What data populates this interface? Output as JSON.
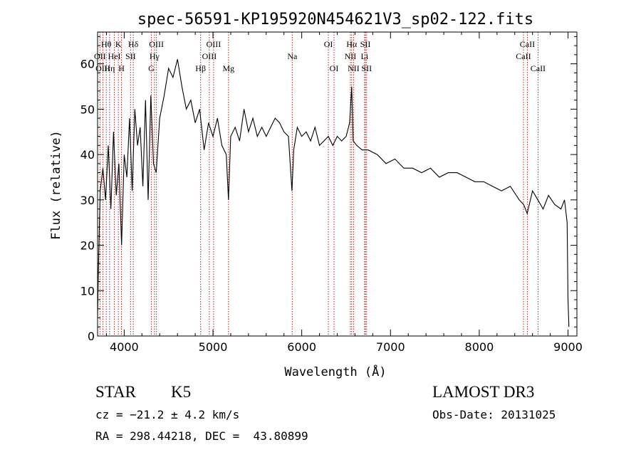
{
  "chart_data": {
    "type": "line",
    "title": "spec-56591-KP195920N454621V3_sp02-122.fits",
    "xlabel": "Wavelength (Å)",
    "ylabel": "Flux (relative)",
    "xlim": [
      3700,
      9100
    ],
    "ylim": [
      0,
      67
    ],
    "x_ticks": [
      4000,
      5000,
      6000,
      7000,
      8000,
      9000
    ],
    "y_ticks": [
      0,
      10,
      20,
      30,
      40,
      50,
      60
    ],
    "x_tick_labels": [
      "4000",
      "5000",
      "6000",
      "7000",
      "8000",
      "9000"
    ],
    "y_tick_labels": [
      "0",
      "10",
      "20",
      "30",
      "40",
      "50",
      "60"
    ],
    "series": [
      {
        "name": "flux",
        "color": "#000000",
        "x": [
          3700,
          3710,
          3730,
          3760,
          3790,
          3820,
          3850,
          3880,
          3910,
          3940,
          3970,
          4000,
          4030,
          4060,
          4090,
          4120,
          4150,
          4180,
          4210,
          4240,
          4270,
          4300,
          4330,
          4360,
          4400,
          4450,
          4500,
          4550,
          4600,
          4650,
          4700,
          4750,
          4800,
          4850,
          4900,
          4950,
          5000,
          5050,
          5100,
          5150,
          5175,
          5200,
          5250,
          5300,
          5350,
          5400,
          5450,
          5500,
          5550,
          5600,
          5650,
          5700,
          5750,
          5800,
          5850,
          5890,
          5910,
          5950,
          6000,
          6050,
          6100,
          6150,
          6200,
          6250,
          6300,
          6350,
          6400,
          6450,
          6500,
          6540,
          6563,
          6580,
          6620,
          6680,
          6750,
          6850,
          6950,
          7050,
          7150,
          7250,
          7350,
          7450,
          7550,
          7650,
          7750,
          7850,
          7950,
          8050,
          8150,
          8250,
          8350,
          8450,
          8500,
          8540,
          8600,
          8660,
          8720,
          8780,
          8850,
          8920,
          8960,
          8990,
          9000,
          9010
        ],
        "values": [
          4,
          15,
          32,
          37,
          30,
          42,
          28,
          45,
          31,
          38,
          20,
          40,
          35,
          48,
          32,
          50,
          42,
          46,
          33,
          52,
          30,
          53,
          38,
          36,
          48,
          53,
          59,
          57,
          61,
          55,
          50,
          52,
          47,
          50,
          41,
          47,
          44,
          48,
          42,
          40,
          30,
          44,
          46,
          43,
          50,
          45,
          48,
          44,
          46,
          44,
          46,
          48,
          47,
          45,
          44,
          32,
          41,
          46,
          44,
          45,
          43,
          46,
          42,
          43,
          44,
          42,
          44,
          43,
          44,
          47,
          55,
          43,
          42,
          41,
          41,
          40,
          38,
          39,
          37,
          37,
          36,
          37,
          35,
          36,
          36,
          35,
          34,
          34,
          33,
          32,
          33,
          30,
          29,
          27,
          32,
          30,
          28,
          31,
          29,
          28,
          30,
          25,
          8,
          2
        ]
      }
    ],
    "spectral_lines": [
      {
        "label": "Hθ",
        "x": 3798,
        "row": 0
      },
      {
        "label": "OII",
        "x": 3727,
        "row": 1
      },
      {
        "label": "OIII",
        "x": 3760,
        "row": 2
      },
      {
        "label": "K",
        "x": 3934,
        "row": 0
      },
      {
        "label": "HeI",
        "x": 3889,
        "row": 1
      },
      {
        "label": "Hη",
        "x": 3835,
        "row": 2
      },
      {
        "label": "H",
        "x": 3969,
        "row": 2
      },
      {
        "label": "Hδ",
        "x": 4102,
        "row": 0
      },
      {
        "label": "SII",
        "x": 4072,
        "row": 1
      },
      {
        "label": "OIII",
        "x": 4363,
        "row": 0
      },
      {
        "label": "Hγ",
        "x": 4341,
        "row": 1
      },
      {
        "label": "G",
        "x": 4305,
        "row": 2
      },
      {
        "label": "Hβ",
        "x": 4861,
        "row": 2
      },
      {
        "label": "OIII",
        "x": 5007,
        "row": 0
      },
      {
        "label": "OIII",
        "x": 4959,
        "row": 1
      },
      {
        "label": "Mg",
        "x": 5175,
        "row": 2
      },
      {
        "label": "Na",
        "x": 5893,
        "row": 1
      },
      {
        "label": "OI",
        "x": 6300,
        "row": 0
      },
      {
        "label": "OI",
        "x": 6364,
        "row": 2
      },
      {
        "label": "Hα",
        "x": 6563,
        "row": 0
      },
      {
        "label": "NII",
        "x": 6548,
        "row": 1
      },
      {
        "label": "NII",
        "x": 6584,
        "row": 2
      },
      {
        "label": "SII",
        "x": 6717,
        "row": 0
      },
      {
        "label": "Li",
        "x": 6708,
        "row": 1
      },
      {
        "label": "SII",
        "x": 6731,
        "row": 2
      },
      {
        "label": "CaII",
        "x": 8542,
        "row": 0
      },
      {
        "label": "CaII",
        "x": 8498,
        "row": 1
      },
      {
        "label": "CaII",
        "x": 8662,
        "row": 2
      }
    ]
  },
  "info": {
    "object_class": "STAR",
    "subclass": "K5",
    "survey": "LAMOST DR3",
    "cz": "cz = −21.2 ± 4.2 km/s",
    "obs_date": "Obs-Date: 20131025",
    "coords": "RA = 298.44218, DEC =  43.80899"
  },
  "colors": {
    "line_marker": "#b22222",
    "axes": "#000000",
    "background": "#ffffff"
  }
}
